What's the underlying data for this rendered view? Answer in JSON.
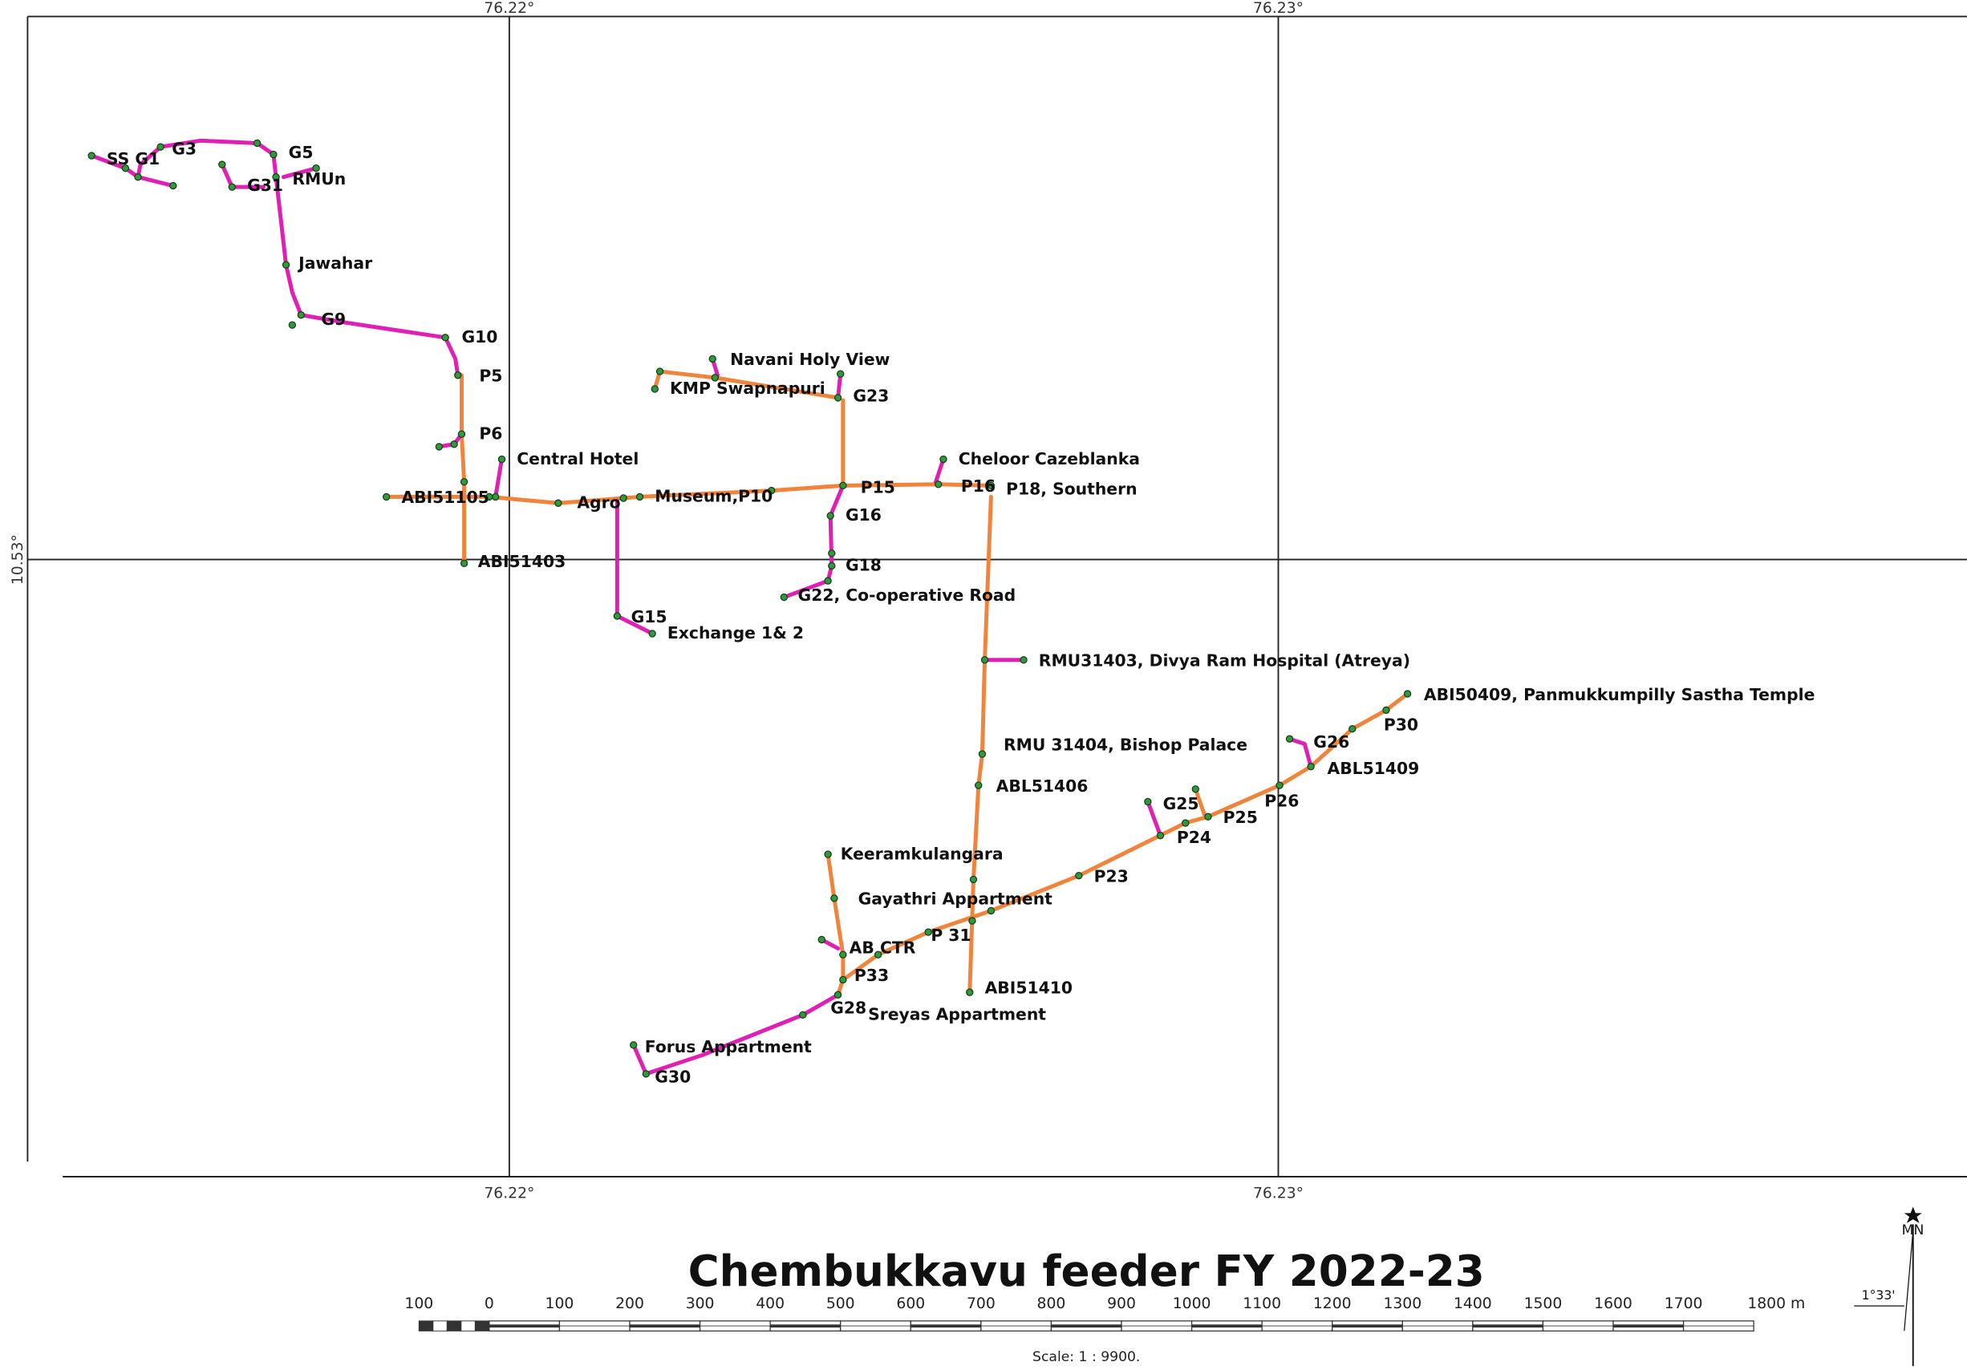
{
  "title": "Chembukkavu feeder FY 2022-23",
  "grid_labels": {
    "top": [
      "76.22°",
      "76.23°"
    ],
    "bottom": [
      "76.22°",
      "76.23°"
    ],
    "left": [
      "10.53°"
    ]
  },
  "labels": [
    "SS G1",
    "G3",
    "G5",
    "G31",
    "RMUn",
    "Jawahar",
    "G9",
    "G10",
    "P5",
    "P6",
    "Central Hotel",
    "ABI51105",
    "Agro",
    "Museum,P10",
    "ABI51403",
    "Navani Holy View",
    "KMP Swapnapuri",
    "G23",
    "P15",
    "P16",
    "P18, Southern",
    "Cheloor Cazeblanka",
    "G16",
    "G18",
    "G22, Co-operative Road",
    "G15",
    "Exchange 1& 2",
    "RMU31403, Divya Ram Hospital (Atreya)",
    "ABI50409, Panmukkumpilly Sastha Temple",
    "P30",
    "G26",
    "ABL51409",
    "RMU 31404, Bishop Palace",
    "ABL51406",
    "P26",
    "G25",
    "P25",
    "P24",
    "P23",
    "Keeramkulangara",
    "Gayathri Appartment",
    "P 31",
    "AB CTR",
    "P33",
    "ABI51410",
    "G28",
    "Sreyas Appartment",
    "Forus Appartment",
    "G30"
  ],
  "scale_bar": {
    "labels": [
      "100",
      "0",
      "100",
      "200",
      "300",
      "400",
      "500",
      "600",
      "700",
      "800",
      "900",
      "1000",
      "1100",
      "1200",
      "1300",
      "1400",
      "1500",
      "1600",
      "1700",
      "1800 m"
    ],
    "scale": "Scale: 1 : 9900."
  },
  "north": {
    "label": "MN",
    "declination": "1°33'"
  }
}
